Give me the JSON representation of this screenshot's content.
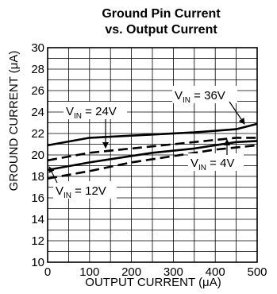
{
  "chart_data": {
    "type": "line",
    "title_line1": "Ground Pin Current",
    "title_line2": "vs. Output Current",
    "xlabel": "OUTPUT CURRENT (μA)",
    "ylabel": "GROUND CURRENT (μA)",
    "xlim": [
      0,
      500
    ],
    "ylim": [
      10,
      30
    ],
    "x_ticks": [
      0,
      100,
      200,
      300,
      400,
      500
    ],
    "y_ticks": [
      10,
      12,
      14,
      16,
      18,
      20,
      22,
      24,
      26,
      28,
      30
    ],
    "x_minor_step": 50,
    "y_minor_step": 1,
    "grid": true,
    "series": [
      {
        "name": "V_IN = 36V",
        "style": "solid",
        "x": [
          0,
          100,
          150,
          250,
          350,
          450,
          500
        ],
        "y": [
          20.9,
          21.6,
          21.7,
          21.9,
          22.1,
          22.4,
          22.9
        ]
      },
      {
        "name": "V_IN = 24V",
        "style": "dashed",
        "x": [
          0,
          100,
          200,
          300,
          400,
          450,
          500
        ],
        "y": [
          19.5,
          20.2,
          20.6,
          21.0,
          21.4,
          21.6,
          21.6
        ]
      },
      {
        "name": "V_IN = 12V",
        "style": "solid",
        "x": [
          0,
          100,
          250,
          350,
          450,
          500
        ],
        "y": [
          18.6,
          19.3,
          20.2,
          20.6,
          21.2,
          21.3
        ]
      },
      {
        "name": "V_IN = 4V",
        "style": "dashed",
        "x": [
          0,
          100,
          200,
          300,
          400,
          450,
          500
        ],
        "y": [
          17.8,
          18.5,
          19.3,
          19.9,
          20.5,
          20.7,
          20.9
        ]
      }
    ],
    "annotations": [
      {
        "id": "v36",
        "main": "V",
        "sub": "IN",
        "rest": " = 36V"
      },
      {
        "id": "v24",
        "main": "V",
        "sub": "IN",
        "rest": " = 24V"
      },
      {
        "id": "v12",
        "main": "V",
        "sub": "IN",
        "rest": " = 12V"
      },
      {
        "id": "v4",
        "main": "V",
        "sub": "IN",
        "rest": " = 4V"
      }
    ]
  }
}
